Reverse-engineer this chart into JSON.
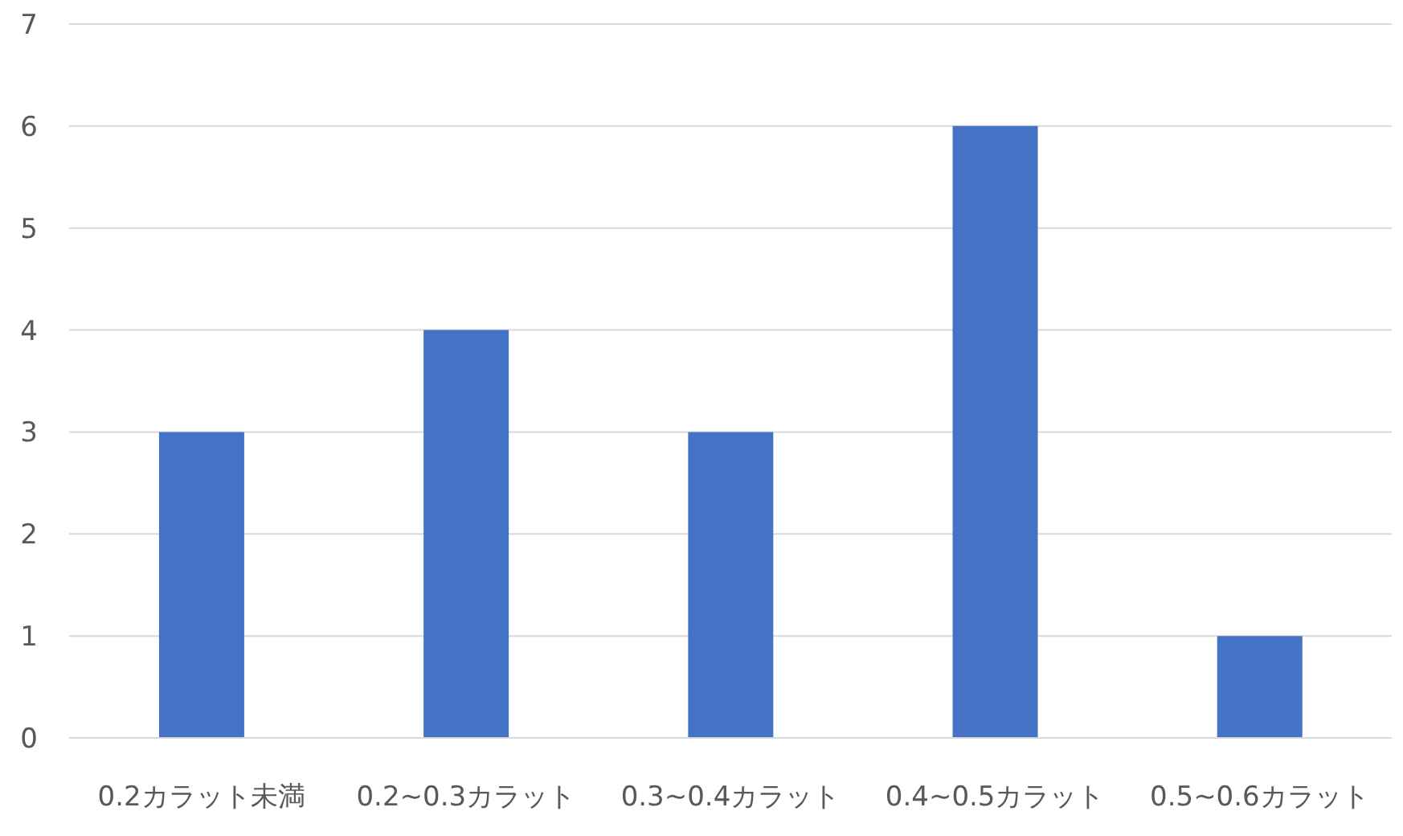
{
  "chart_data": {
    "type": "bar",
    "categories": [
      "0.2カラット未満",
      "0.2~0.3カラット",
      "0.3~0.4カラット",
      "0.4~0.5カラット",
      "0.5~0.6カラット"
    ],
    "values": [
      3,
      4,
      3,
      6,
      1
    ],
    "color": "#4472c4",
    "ylim": [
      0,
      7
    ],
    "yticks": [
      0,
      1,
      2,
      3,
      4,
      5,
      6,
      7
    ],
    "grid": "y"
  }
}
